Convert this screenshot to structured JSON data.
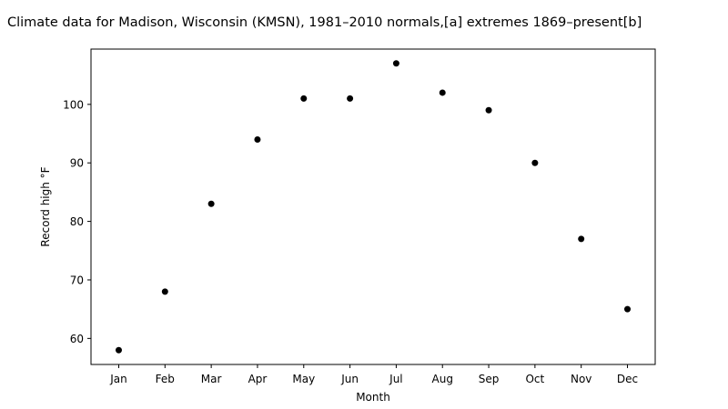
{
  "chart_data": {
    "type": "scatter",
    "title": "Climate data for Madison, Wisconsin (KMSN), 1981–2010 normals,[a] extremes 1869–present[b]",
    "xlabel": "Month",
    "ylabel": "Record high °F",
    "categories": [
      "Jan",
      "Feb",
      "Mar",
      "Apr",
      "May",
      "Jun",
      "Jul",
      "Aug",
      "Sep",
      "Oct",
      "Nov",
      "Dec"
    ],
    "series": [
      {
        "values": [
          58,
          68,
          83,
          94,
          101,
          101,
          107,
          102,
          99,
          90,
          77,
          65
        ]
      }
    ],
    "yticks": [
      60,
      70,
      80,
      90,
      100
    ],
    "ylim": [
      55.55,
      109.45
    ],
    "grid": false,
    "legend": "none",
    "marker_color": "#000000"
  }
}
